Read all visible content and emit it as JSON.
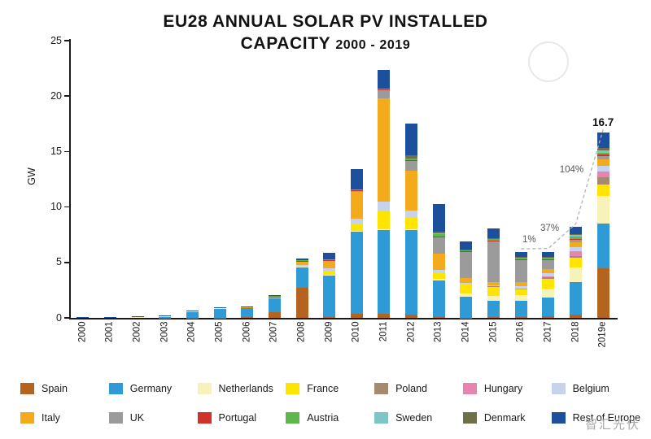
{
  "title": {
    "line1": "EU28 ANNUAL SOLAR PV INSTALLED",
    "line2": "CAPACITY",
    "range": "2000 - 2019"
  },
  "watermark_text": "智汇光伏",
  "chart_data": {
    "type": "bar",
    "stacked": true,
    "title": "EU28 ANNUAL SOLAR PV INSTALLED CAPACITY 2000 - 2019",
    "xlabel": "",
    "ylabel": "GW",
    "ylim": [
      0,
      25
    ],
    "yticks": [
      0,
      5,
      10,
      15,
      20,
      25
    ],
    "grid": false,
    "legend_position": "bottom",
    "legend_rows": 2,
    "categories": [
      "2000",
      "2001",
      "2002",
      "2003",
      "2004",
      "2005",
      "2006",
      "2007",
      "2008",
      "2009",
      "2010",
      "2011",
      "2012",
      "2013",
      "2014",
      "2015",
      "2016",
      "2017",
      "2018",
      "2019e"
    ],
    "series": [
      {
        "name": "Spain",
        "color": "#b5641f",
        "values": [
          0,
          0,
          0,
          0.01,
          0.01,
          0.02,
          0.07,
          0.5,
          2.7,
          0.1,
          0.4,
          0.4,
          0.3,
          0.1,
          0.02,
          0.05,
          0.05,
          0.15,
          0.26,
          4.5
        ]
      },
      {
        "name": "Germany",
        "color": "#2e9bd6",
        "values": [
          0.04,
          0.08,
          0.08,
          0.15,
          0.6,
          0.85,
          0.85,
          1.3,
          1.9,
          3.8,
          7.4,
          7.5,
          7.6,
          3.3,
          1.9,
          1.46,
          1.5,
          1.7,
          2.96,
          4.0
        ]
      },
      {
        "name": "Netherlands",
        "color": "#f7f3b8",
        "values": [
          0.01,
          0.01,
          0.01,
          0.01,
          0.01,
          0.01,
          0.01,
          0.01,
          0.01,
          0.02,
          0.02,
          0.06,
          0.06,
          0.1,
          0.3,
          0.45,
          0.5,
          0.8,
          1.3,
          2.5
        ]
      },
      {
        "name": "France",
        "color": "#ffe400",
        "values": [
          0,
          0,
          0,
          0,
          0,
          0,
          0.01,
          0.03,
          0.1,
          0.25,
          0.7,
          1.7,
          1.1,
          0.6,
          0.9,
          0.89,
          0.6,
          0.9,
          0.87,
          1.0
        ]
      },
      {
        "name": "Poland",
        "color": "#a68a6d",
        "values": [
          0,
          0,
          0,
          0,
          0,
          0,
          0,
          0,
          0,
          0,
          0,
          0,
          0,
          0,
          0,
          0.01,
          0.01,
          0.08,
          0.2,
          0.7
        ]
      },
      {
        "name": "Hungary",
        "color": "#e884b0",
        "values": [
          0,
          0,
          0,
          0,
          0,
          0,
          0,
          0,
          0,
          0,
          0,
          0,
          0,
          0,
          0,
          0,
          0.01,
          0.1,
          0.41,
          0.5
        ]
      },
      {
        "name": "Belgium",
        "color": "#c6d3ec",
        "values": [
          0,
          0,
          0,
          0,
          0,
          0,
          0,
          0.02,
          0.05,
          0.3,
          0.4,
          0.8,
          0.6,
          0.2,
          0.06,
          0.1,
          0.17,
          0.3,
          0.37,
          0.5
        ]
      },
      {
        "name": "Italy",
        "color": "#f3ab1d",
        "values": [
          0,
          0,
          0,
          0,
          0,
          0,
          0.01,
          0.07,
          0.34,
          0.7,
          2.5,
          9.3,
          3.6,
          1.5,
          0.4,
          0.3,
          0.4,
          0.4,
          0.44,
          0.6
        ]
      },
      {
        "name": "UK",
        "color": "#9b9b9b",
        "values": [
          0,
          0,
          0,
          0,
          0,
          0,
          0,
          0,
          0,
          0.01,
          0.05,
          0.8,
          0.9,
          1.5,
          2.4,
          3.7,
          2.0,
          0.8,
          0.27,
          0.3
        ]
      },
      {
        "name": "Portugal",
        "color": "#d03229",
        "values": [
          0,
          0,
          0,
          0,
          0,
          0,
          0,
          0.01,
          0.05,
          0.03,
          0.03,
          0.03,
          0.03,
          0.03,
          0.02,
          0.02,
          0.02,
          0.02,
          0.05,
          0.1
        ]
      },
      {
        "name": "Austria",
        "color": "#5db84b",
        "values": [
          0,
          0,
          0,
          0,
          0,
          0,
          0,
          0.02,
          0.03,
          0.05,
          0.05,
          0.1,
          0.2,
          0.26,
          0.14,
          0.15,
          0.15,
          0.17,
          0.17,
          0.2
        ]
      },
      {
        "name": "Sweden",
        "color": "#7ec5c5",
        "values": [
          0,
          0,
          0,
          0,
          0,
          0,
          0,
          0,
          0,
          0,
          0,
          0,
          0,
          0.01,
          0.01,
          0.04,
          0.06,
          0.09,
          0.18,
          0.2
        ]
      },
      {
        "name": "Denmark",
        "color": "#6e7045",
        "values": [
          0,
          0,
          0,
          0,
          0,
          0,
          0,
          0,
          0,
          0,
          0,
          0,
          0.3,
          0.2,
          0.03,
          0.01,
          0.01,
          0.01,
          0.05,
          0.2
        ]
      },
      {
        "name": "Rest of Europe",
        "color": "#1c4f9c",
        "values": [
          0.01,
          0.01,
          0.02,
          0.03,
          0.05,
          0.08,
          0.1,
          0.1,
          0.2,
          0.6,
          1.9,
          1.7,
          2.8,
          2.5,
          0.7,
          0.9,
          0.45,
          0.45,
          0.65,
          1.4
        ]
      }
    ],
    "annotations": [
      {
        "text": "1%",
        "x_index": 16.3,
        "gw": 6.9
      },
      {
        "text": "37%",
        "x_index": 17.05,
        "gw": 7.9
      },
      {
        "text": "104%",
        "x_index": 17.85,
        "gw": 13.2
      },
      {
        "text": "16.7",
        "x_index": 19,
        "gw": 17.6,
        "bold": true
      }
    ],
    "trend_line_bar_indices": [
      16,
      17,
      18,
      19
    ]
  }
}
